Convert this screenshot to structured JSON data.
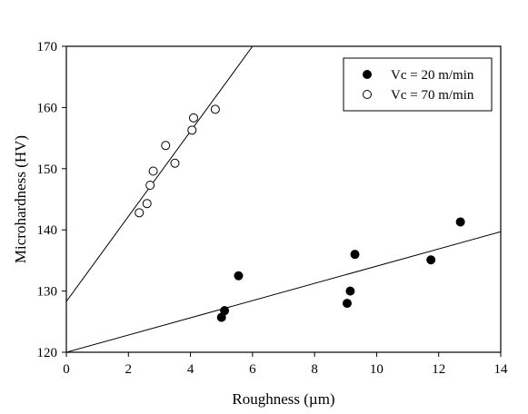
{
  "chart_data": {
    "type": "scatter",
    "xlabel": "Roughness (µm)",
    "ylabel": "Microhardness (HV)",
    "xlim": [
      0,
      14
    ],
    "ylim": [
      120,
      170
    ],
    "x_ticks": [
      0,
      2,
      4,
      6,
      8,
      10,
      12,
      14
    ],
    "y_ticks": [
      120,
      130,
      140,
      150,
      160,
      170
    ],
    "x_tick_labels": [
      "0",
      "2",
      "4",
      "6",
      "8",
      "10",
      "12",
      "14"
    ],
    "y_tick_labels": [
      "120",
      "130",
      "140",
      "150",
      "160",
      "170"
    ],
    "grid": false,
    "legend_position": "top-right",
    "series": [
      {
        "name": "Vc = 20 m/min",
        "marker": "filled-circle",
        "color": "#000000",
        "points": [
          {
            "x": 5.0,
            "y": 125.7
          },
          {
            "x": 5.1,
            "y": 126.8
          },
          {
            "x": 5.55,
            "y": 132.5
          },
          {
            "x": 9.05,
            "y": 128.0
          },
          {
            "x": 9.15,
            "y": 130.0
          },
          {
            "x": 9.3,
            "y": 136.0
          },
          {
            "x": 11.75,
            "y": 135.1
          },
          {
            "x": 12.7,
            "y": 141.3
          }
        ],
        "fit": {
          "x": [
            0,
            14
          ],
          "y": [
            120.0,
            139.7
          ]
        }
      },
      {
        "name": "Vc = 70 m/min",
        "marker": "open-circle",
        "color": "#000000",
        "points": [
          {
            "x": 2.35,
            "y": 142.8
          },
          {
            "x": 2.6,
            "y": 144.3
          },
          {
            "x": 2.7,
            "y": 147.3
          },
          {
            "x": 2.8,
            "y": 149.6
          },
          {
            "x": 3.2,
            "y": 153.8
          },
          {
            "x": 3.5,
            "y": 150.9
          },
          {
            "x": 4.05,
            "y": 156.3
          },
          {
            "x": 4.1,
            "y": 158.3
          },
          {
            "x": 4.8,
            "y": 159.7
          }
        ],
        "fit": {
          "x": [
            0,
            6.0
          ],
          "y": [
            128.3,
            170.0
          ]
        }
      }
    ]
  }
}
